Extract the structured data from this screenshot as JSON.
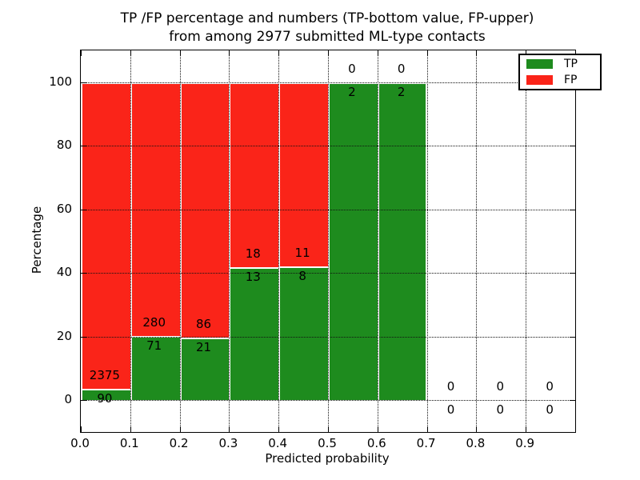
{
  "title": {
    "line1": "TP /FP percentage and numbers (TP-bottom value, FP-upper)",
    "line2": "from among 2977 submitted ML-type contacts"
  },
  "axes": {
    "xlabel": "Predicted probability",
    "ylabel": "Percentage",
    "xtick_labels": [
      "0.0",
      "0.1",
      "0.2",
      "0.3",
      "0.4",
      "0.5",
      "0.6",
      "0.7",
      "0.8",
      "0.9"
    ],
    "ytick_values": [
      0,
      20,
      40,
      60,
      80,
      100
    ],
    "xlim": [
      0.0,
      1.0
    ],
    "ylim": [
      -10,
      110
    ],
    "grid": "dotted"
  },
  "legend": {
    "position": "upper right",
    "entries": [
      {
        "label": "TP",
        "color": "#1e8b1e"
      },
      {
        "label": "FP",
        "color": "#fa2419"
      }
    ]
  },
  "chart_data": {
    "type": "bar",
    "stacked": true,
    "total_submitted": 2977,
    "bin_width": 0.1,
    "bin_starts": [
      0.0,
      0.1,
      0.2,
      0.3,
      0.4,
      0.5,
      0.6,
      0.7,
      0.8,
      0.9
    ],
    "categories": [
      "0.0-0.1",
      "0.1-0.2",
      "0.2-0.3",
      "0.3-0.4",
      "0.4-0.5",
      "0.5-0.6",
      "0.6-0.7",
      "0.7-0.8",
      "0.8-0.9",
      "0.9-1.0"
    ],
    "series": [
      {
        "name": "TP",
        "color": "#1e8b1e",
        "counts": [
          90,
          71,
          21,
          13,
          8,
          2,
          2,
          0,
          0,
          0
        ],
        "pct": [
          3.65,
          20.23,
          19.63,
          41.94,
          42.11,
          100,
          100,
          0,
          0,
          0
        ]
      },
      {
        "name": "FP",
        "color": "#fa2419",
        "counts": [
          2375,
          280,
          86,
          18,
          11,
          0,
          0,
          0,
          0,
          0
        ],
        "pct": [
          96.35,
          79.77,
          80.37,
          58.06,
          57.89,
          0,
          0,
          0,
          0,
          0
        ]
      }
    ],
    "title": "TP /FP percentage and numbers (TP-bottom value, FP-upper) from among 2977 submitted ML-type contacts",
    "xlabel": "Predicted probability",
    "ylabel": "Percentage"
  }
}
